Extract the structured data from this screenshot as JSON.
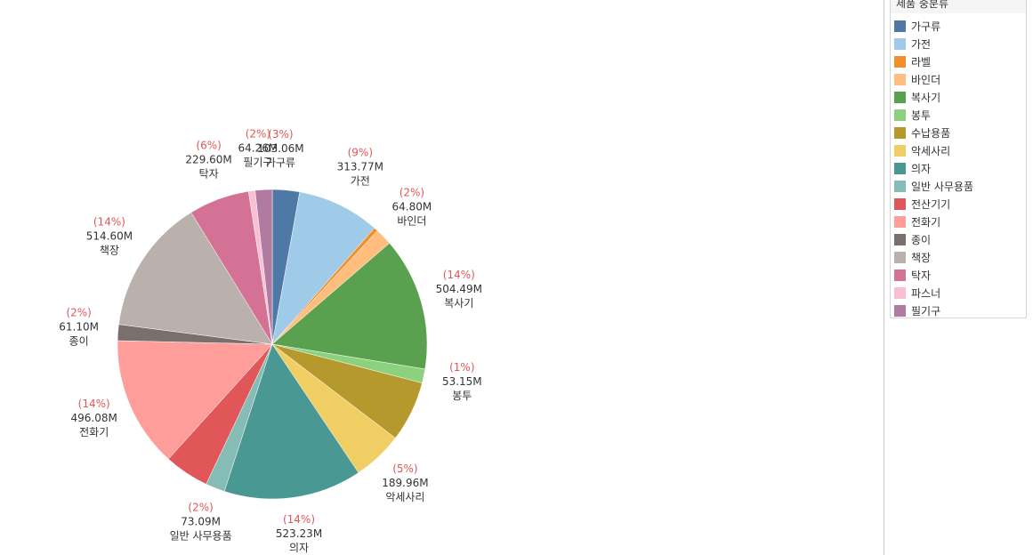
{
  "legend": {
    "title": "제품 중분류"
  },
  "chart_data": {
    "type": "pie",
    "title": "",
    "categories": [
      "가구류",
      "가전",
      "라벨",
      "바인더",
      "복사기",
      "봉투",
      "수납용품",
      "악세사리",
      "의자",
      "일반 사무용품",
      "전산기기",
      "전화기",
      "종이",
      "책장",
      "탁자",
      "파스너",
      "필기구"
    ],
    "values": [
      103.06,
      313.77,
      15.0,
      64.8,
      504.49,
      53.15,
      230.0,
      189.96,
      523.23,
      73.09,
      170.0,
      496.08,
      61.1,
      514.6,
      229.6,
      25.0,
      64.26
    ],
    "colors": [
      "#4e79a7",
      "#a0cbe8",
      "#f28e2b",
      "#ffbe7d",
      "#59a14f",
      "#8cd17d",
      "#b6992d",
      "#f1ce63",
      "#499894",
      "#86bcb6",
      "#e15759",
      "#ff9d9a",
      "#79706e",
      "#bab0ac",
      "#d37295",
      "#fabfd2",
      "#b07aa1"
    ],
    "data_labels": [
      {
        "category": "가구류",
        "pct": "(3%)",
        "value": "103.06M",
        "name": "가구류"
      },
      {
        "category": "가전",
        "pct": "(9%)",
        "value": "313.77M",
        "name": "가전"
      },
      {
        "category": "바인더",
        "pct": "(2%)",
        "value": "64.80M",
        "name": "바인더"
      },
      {
        "category": "복사기",
        "pct": "(14%)",
        "value": "504.49M",
        "name": "복사기"
      },
      {
        "category": "봉투",
        "pct": "(1%)",
        "value": "53.15M",
        "name": "봉투"
      },
      {
        "category": "악세사리",
        "pct": "(5%)",
        "value": "189.96M",
        "name": "악세사리"
      },
      {
        "category": "의자",
        "pct": "(14%)",
        "value": "523.23M",
        "name": "의자"
      },
      {
        "category": "일반 사무용품",
        "pct": "(2%)",
        "value": "73.09M",
        "name": "일반 사무용품"
      },
      {
        "category": "전화기",
        "pct": "(14%)",
        "value": "496.08M",
        "name": "전화기"
      },
      {
        "category": "종이",
        "pct": "(2%)",
        "value": "61.10M",
        "name": "종이"
      },
      {
        "category": "책장",
        "pct": "(14%)",
        "value": "514.60M",
        "name": "책장"
      },
      {
        "category": "탁자",
        "pct": "(6%)",
        "value": "229.60M",
        "name": "탁자"
      },
      {
        "category": "필기구",
        "pct": "(2%)",
        "value": "64.26M",
        "name": "필기구"
      }
    ],
    "legend_position": "right"
  }
}
